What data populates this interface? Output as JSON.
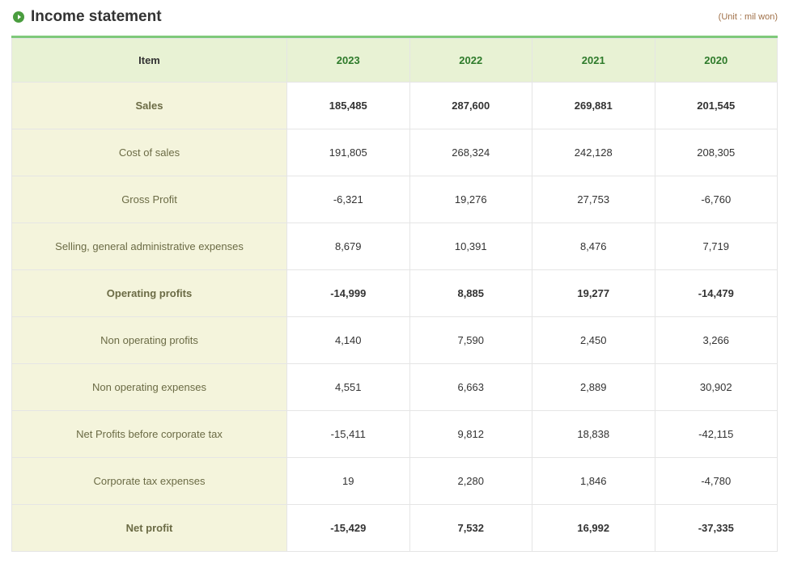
{
  "title": "Income statement",
  "unit_note": "(Unit : mil won)",
  "colors": {
    "accent": "#4a9d3f",
    "top_border": "#7fc97a",
    "header_bg": "#e8f2d4",
    "header_text": "#2d7a2a",
    "item_header_text": "#333333",
    "label_bg": "#f4f4dc",
    "label_text": "#6b6b45",
    "cell_border": "#e5e5e5",
    "unit_text": "#a07048",
    "bullet_bg": "#4a9d3f"
  },
  "table": {
    "item_header": "Item",
    "year_headers": [
      "2023",
      "2022",
      "2021",
      "2020"
    ],
    "rows": [
      {
        "label": "Sales",
        "bold": true,
        "values": [
          "185,485",
          "287,600",
          "269,881",
          "201,545"
        ]
      },
      {
        "label": "Cost of sales",
        "bold": false,
        "values": [
          "191,805",
          "268,324",
          "242,128",
          "208,305"
        ]
      },
      {
        "label": "Gross Profit",
        "bold": false,
        "values": [
          "-6,321",
          "19,276",
          "27,753",
          "-6,760"
        ]
      },
      {
        "label": "Selling, general administrative expenses",
        "bold": false,
        "values": [
          "8,679",
          "10,391",
          "8,476",
          "7,719"
        ]
      },
      {
        "label": "Operating profits",
        "bold": true,
        "values": [
          "-14,999",
          "8,885",
          "19,277",
          "-14,479"
        ]
      },
      {
        "label": "Non operating profits",
        "bold": false,
        "values": [
          "4,140",
          "7,590",
          "2,450",
          "3,266"
        ]
      },
      {
        "label": "Non operating expenses",
        "bold": false,
        "values": [
          "4,551",
          "6,663",
          "2,889",
          "30,902"
        ]
      },
      {
        "label": "Net Profits before corporate tax",
        "bold": false,
        "values": [
          "-15,411",
          "9,812",
          "18,838",
          "-42,115"
        ]
      },
      {
        "label": "Corporate tax expenses",
        "bold": false,
        "values": [
          "19",
          "2,280",
          "1,846",
          "-4,780"
        ]
      },
      {
        "label": "Net profit",
        "bold": true,
        "values": [
          "-15,429",
          "7,532",
          "16,992",
          "-37,335"
        ]
      }
    ]
  }
}
